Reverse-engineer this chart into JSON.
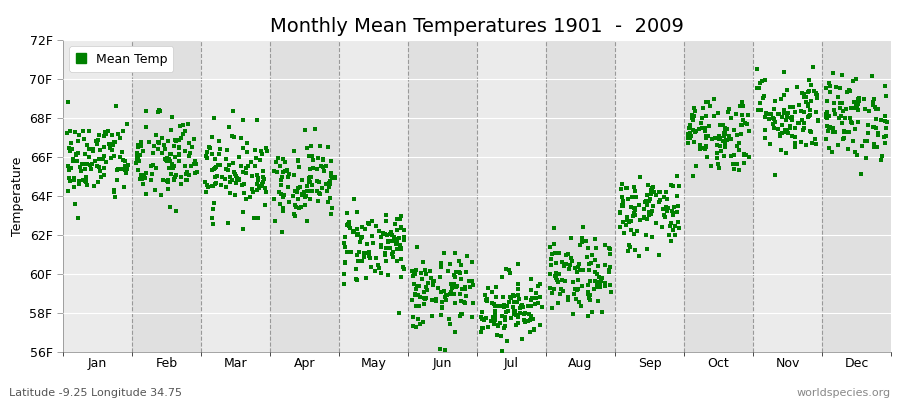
{
  "title": "Monthly Mean Temperatures 1901  -  2009",
  "ylabel": "Temperature",
  "xlabel_bottom_left": "Latitude -9.25 Longitude 34.75",
  "xlabel_bottom_right": "worldspecies.org",
  "ylim": [
    56,
    72
  ],
  "yticks": [
    56,
    58,
    60,
    62,
    64,
    66,
    68,
    70,
    72
  ],
  "ytick_labels": [
    "56F",
    "58F",
    "60F",
    "62F",
    "64F",
    "66F",
    "68F",
    "70F",
    "72F"
  ],
  "months": [
    "Jan",
    "Feb",
    "Mar",
    "Apr",
    "May",
    "Jun",
    "Jul",
    "Aug",
    "Sep",
    "Oct",
    "Nov",
    "Dec"
  ],
  "dot_color": "#008000",
  "dot_size": 5,
  "background_color": "#ffffff",
  "plot_bg_color": "#ebebeb",
  "stripe_color": "#e0e0e0",
  "legend_label": "Mean Temp",
  "num_years": 109,
  "mean_temps_f": [
    65.8,
    65.8,
    65.3,
    64.8,
    61.5,
    59.0,
    58.3,
    59.8,
    63.2,
    67.2,
    68.2,
    68.0
  ],
  "std_temps_f": [
    1.1,
    1.2,
    1.1,
    1.0,
    1.0,
    1.0,
    0.9,
    1.0,
    1.0,
    1.0,
    1.1,
    1.1
  ],
  "seed": 42,
  "title_fontsize": 14,
  "axis_fontsize": 9,
  "legend_fontsize": 9
}
